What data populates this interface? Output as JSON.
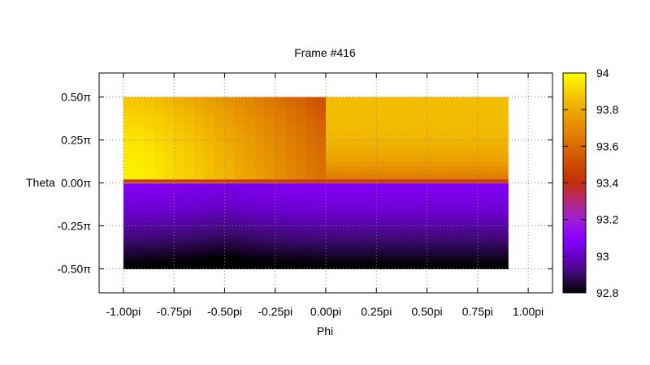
{
  "chart_data": {
    "type": "heatmap",
    "title": "Frame #416",
    "xlabel": "Phi",
    "ylabel": "Theta",
    "xlim": [
      -1.12,
      1.12
    ],
    "ylim": [
      -0.64,
      0.64
    ],
    "grid": true,
    "x_ticks": [
      {
        "value": -1.0,
        "label": "-1.00pi"
      },
      {
        "value": -0.75,
        "label": "-0.75pi"
      },
      {
        "value": -0.5,
        "label": "-0.50pi"
      },
      {
        "value": -0.25,
        "label": "-0.25pi"
      },
      {
        "value": 0.0,
        "label": "0.00pi"
      },
      {
        "value": 0.25,
        "label": "0.25pi"
      },
      {
        "value": 0.5,
        "label": "0.50pi"
      },
      {
        "value": 0.75,
        "label": "0.75pi"
      },
      {
        "value": 1.0,
        "label": "1.00pi"
      }
    ],
    "y_ticks": [
      {
        "value": 0.5,
        "label": "0.50π"
      },
      {
        "value": 0.25,
        "label": "0.25π"
      },
      {
        "value": 0.0,
        "label": "0.00π"
      },
      {
        "value": -0.25,
        "label": "-0.25π"
      },
      {
        "value": -0.5,
        "label": "-0.50π"
      }
    ],
    "data_extent": {
      "x": [
        -1.0,
        0.9
      ],
      "y": [
        -0.5,
        0.5
      ]
    },
    "colorbar": {
      "range": [
        92.8,
        94.0
      ],
      "ticks": [
        {
          "value": 94.0,
          "label": "94"
        },
        {
          "value": 93.8,
          "label": "93.8"
        },
        {
          "value": 93.6,
          "label": "93.6"
        },
        {
          "value": 93.4,
          "label": "93.4"
        },
        {
          "value": 93.2,
          "label": "93.2"
        },
        {
          "value": 93.0,
          "label": "93"
        },
        {
          "value": 92.8,
          "label": "92.8"
        }
      ],
      "stops": [
        {
          "value": 92.8,
          "color": "#000000"
        },
        {
          "value": 92.9,
          "color": "#3b0a6e"
        },
        {
          "value": 93.0,
          "color": "#6a00cc"
        },
        {
          "value": 93.1,
          "color": "#8800ff"
        },
        {
          "value": 93.2,
          "color": "#9e1fd2"
        },
        {
          "value": 93.3,
          "color": "#b6287a"
        },
        {
          "value": 93.4,
          "color": "#c12e0a"
        },
        {
          "value": 93.5,
          "color": "#cc4a00"
        },
        {
          "value": 93.6,
          "color": "#d96c00"
        },
        {
          "value": 93.7,
          "color": "#e48a00"
        },
        {
          "value": 93.8,
          "color": "#eeaa00"
        },
        {
          "value": 93.9,
          "color": "#f7d000"
        },
        {
          "value": 94.0,
          "color": "#ffff00"
        }
      ]
    }
  }
}
